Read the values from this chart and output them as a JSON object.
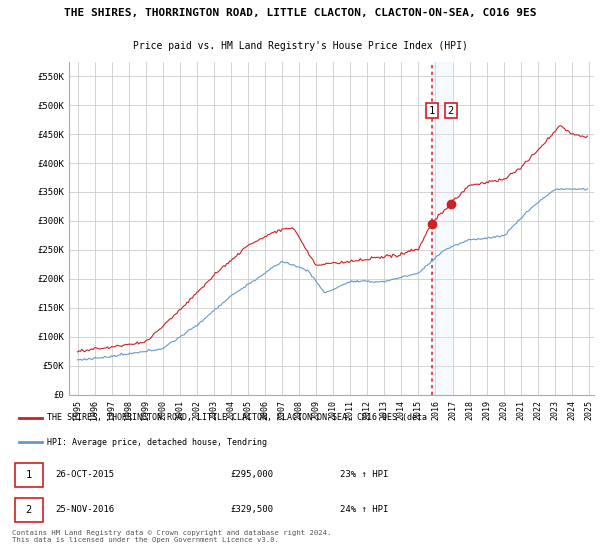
{
  "title1": "THE SHIRES, THORRINGTON ROAD, LITTLE CLACTON, CLACTON-ON-SEA, CO16 9ES",
  "title2": "Price paid vs. HM Land Registry's House Price Index (HPI)",
  "ylim": [
    0,
    575000
  ],
  "yticks": [
    0,
    50000,
    100000,
    150000,
    200000,
    250000,
    300000,
    350000,
    400000,
    450000,
    500000,
    550000
  ],
  "ytick_labels": [
    "£0",
    "£50K",
    "£100K",
    "£150K",
    "£200K",
    "£250K",
    "£300K",
    "£350K",
    "£400K",
    "£450K",
    "£500K",
    "£550K"
  ],
  "sale1_year": 2015.79,
  "sale1_price": 295000,
  "sale2_year": 2016.9,
  "sale2_price": 329500,
  "legend_line1": "THE SHIRES, THORRINGTON ROAD, LITTLE CLACTON, CLACTON-ON-SEA, CO16 9ES (deta",
  "legend_line2": "HPI: Average price, detached house, Tendring",
  "footer": "Contains HM Land Registry data © Crown copyright and database right 2024.\nThis data is licensed under the Open Government Licence v3.0.",
  "line1_color": "#cc2222",
  "line2_color": "#6699cc",
  "shade_color": "#ddeeff",
  "vline_color": "#dd3333",
  "bg_color": "#ffffff",
  "grid_color": "#cccccc"
}
